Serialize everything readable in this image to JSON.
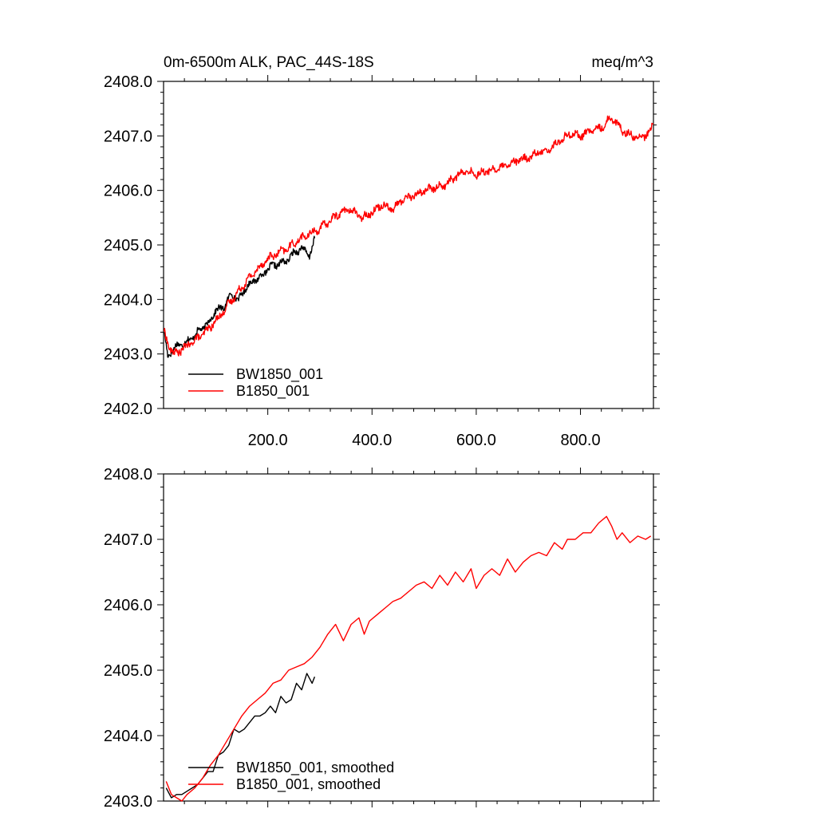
{
  "colors": {
    "bw": "#000000",
    "b": "#ff0000",
    "axis": "#000000"
  },
  "chart_data": [
    {
      "type": "line",
      "title": "0m-6500m ALK, PAC_44S-18S",
      "units": "meq/m^3",
      "xlim": [
        0,
        940
      ],
      "ylim": [
        2402,
        2408
      ],
      "yticks": [
        2402,
        2403,
        2404,
        2405,
        2406,
        2407,
        2408
      ],
      "ytick_labels": [
        "2402.0",
        "2403.0",
        "2404.0",
        "2405.0",
        "2406.0",
        "2407.0",
        "2408.0"
      ],
      "xticks": [
        200,
        400,
        600,
        800
      ],
      "xtick_labels": [
        "200.0",
        "400.0",
        "600.0",
        "800.0"
      ],
      "legend": [
        "BW1850_001",
        "B1850_001"
      ],
      "series": [
        {
          "name": "BW1850_001",
          "color": "#000000",
          "noise": 0.09,
          "x": [
            1,
            8,
            15,
            25,
            40,
            55,
            70,
            85,
            100,
            115,
            130,
            145,
            160,
            175,
            190,
            205,
            220,
            235,
            250,
            265,
            280,
            290
          ],
          "y": [
            2403.4,
            2402.95,
            2403.05,
            2403.15,
            2403.2,
            2403.3,
            2403.45,
            2403.55,
            2403.8,
            2403.85,
            2404.1,
            2404.0,
            2404.25,
            2404.35,
            2404.45,
            2404.6,
            2404.65,
            2404.7,
            2404.85,
            2404.95,
            2404.8,
            2405.1
          ]
        },
        {
          "name": "B1850_001",
          "color": "#ff0000",
          "noise": 0.1,
          "x": [
            1,
            10,
            20,
            30,
            45,
            60,
            80,
            100,
            120,
            140,
            160,
            180,
            200,
            220,
            240,
            260,
            280,
            300,
            320,
            340,
            360,
            380,
            400,
            420,
            440,
            460,
            480,
            500,
            520,
            540,
            560,
            580,
            600,
            620,
            640,
            660,
            680,
            700,
            720,
            740,
            760,
            780,
            800,
            820,
            840,
            860,
            880,
            900,
            915,
            930,
            940
          ],
          "y": [
            2403.4,
            2403.15,
            2403.0,
            2403.05,
            2403.15,
            2403.25,
            2403.4,
            2403.6,
            2403.85,
            2404.1,
            2404.35,
            2404.55,
            2404.75,
            2404.85,
            2404.95,
            2405.1,
            2405.2,
            2405.3,
            2405.45,
            2405.6,
            2405.65,
            2405.5,
            2405.6,
            2405.75,
            2405.65,
            2405.85,
            2405.9,
            2406.0,
            2406.05,
            2406.1,
            2406.25,
            2406.35,
            2406.3,
            2406.35,
            2406.4,
            2406.45,
            2406.55,
            2406.6,
            2406.7,
            2406.75,
            2406.9,
            2407.05,
            2407.0,
            2407.1,
            2407.15,
            2407.35,
            2407.1,
            2407.0,
            2406.95,
            2407.05,
            2407.2
          ]
        }
      ]
    },
    {
      "type": "line",
      "ylim": [
        2403,
        2408
      ],
      "yticks": [
        2403,
        2404,
        2405,
        2406,
        2407,
        2408
      ],
      "ytick_labels": [
        "2403.0",
        "2404.0",
        "2405.0",
        "2406.0",
        "2407.0",
        "2408.0"
      ],
      "xlim": [
        0,
        940
      ],
      "xticks": [
        200,
        400,
        600,
        800
      ],
      "legend": [
        "BW1850_001, smoothed",
        "B1850_001, smoothed"
      ],
      "series": [
        {
          "name": "BW1850_001, smoothed",
          "color": "#000000",
          "x": [
            5,
            15,
            25,
            35,
            45,
            55,
            65,
            75,
            85,
            95,
            105,
            115,
            125,
            135,
            145,
            155,
            165,
            175,
            185,
            195,
            205,
            215,
            225,
            235,
            245,
            255,
            265,
            275,
            285,
            290
          ],
          "y": [
            2403.2,
            2403.05,
            2403.1,
            2403.1,
            2403.15,
            2403.2,
            2403.25,
            2403.35,
            2403.45,
            2403.45,
            2403.7,
            2403.75,
            2403.85,
            2404.1,
            2404.05,
            2404.1,
            2404.2,
            2404.3,
            2404.3,
            2404.35,
            2404.45,
            2404.35,
            2404.6,
            2404.5,
            2404.55,
            2404.8,
            2404.7,
            2404.95,
            2404.8,
            2404.9
          ]
        },
        {
          "name": "B1850_001, smoothed",
          "color": "#ff0000",
          "x": [
            5,
            15,
            25,
            35,
            45,
            60,
            75,
            90,
            105,
            120,
            135,
            150,
            165,
            180,
            195,
            210,
            225,
            240,
            255,
            270,
            285,
            300,
            315,
            330,
            345,
            360,
            375,
            385,
            395,
            410,
            425,
            440,
            455,
            470,
            485,
            500,
            515,
            530,
            545,
            560,
            575,
            590,
            600,
            615,
            630,
            645,
            660,
            675,
            690,
            705,
            720,
            735,
            750,
            765,
            775,
            790,
            805,
            820,
            835,
            850,
            860,
            870,
            880,
            895,
            910,
            925,
            935
          ],
          "y": [
            2403.3,
            2403.1,
            2403.05,
            2403.0,
            2403.1,
            2403.2,
            2403.35,
            2403.55,
            2403.7,
            2403.9,
            2404.1,
            2404.3,
            2404.45,
            2404.55,
            2404.65,
            2404.8,
            2404.85,
            2405.0,
            2405.05,
            2405.1,
            2405.2,
            2405.35,
            2405.55,
            2405.7,
            2405.45,
            2405.7,
            2405.8,
            2405.55,
            2405.75,
            2405.85,
            2405.95,
            2406.05,
            2406.1,
            2406.2,
            2406.3,
            2406.35,
            2406.25,
            2406.45,
            2406.3,
            2406.5,
            2406.35,
            2406.55,
            2406.25,
            2406.45,
            2406.55,
            2406.45,
            2406.7,
            2406.5,
            2406.65,
            2406.75,
            2406.8,
            2406.75,
            2406.95,
            2406.85,
            2407.0,
            2407.0,
            2407.1,
            2407.1,
            2407.25,
            2407.35,
            2407.2,
            2407.0,
            2407.1,
            2406.95,
            2407.05,
            2407.0,
            2407.05
          ]
        }
      ]
    }
  ]
}
